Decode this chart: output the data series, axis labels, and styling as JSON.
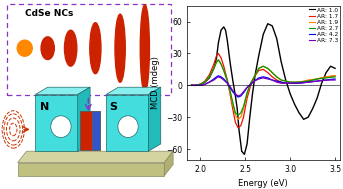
{
  "fig_width": 3.43,
  "fig_height": 1.89,
  "dpi": 100,
  "plot": {
    "xlim": [
      1.85,
      3.55
    ],
    "ylim": [
      -70,
      75
    ],
    "yticks": [
      -60,
      -30,
      0,
      30,
      60
    ],
    "xticks": [
      2.0,
      2.5,
      3.0,
      3.5
    ],
    "xlabel": "Energy (eV)",
    "ylabel": "MCD (mdeg)",
    "legend_labels": [
      "AR: 1.0",
      "AR: 1.7",
      "AR: 1.9",
      "AR: 2.7",
      "AR: 4.2",
      "AR: 7.3"
    ],
    "legend_colors": [
      "#000000",
      "#ee1100",
      "#ff8800",
      "#009900",
      "#0000ee",
      "#7700bb"
    ]
  },
  "curves": {
    "AR1.0": {
      "color": "#000000",
      "x": [
        1.9,
        1.95,
        2.0,
        2.05,
        2.1,
        2.15,
        2.18,
        2.2,
        2.23,
        2.26,
        2.28,
        2.3,
        2.33,
        2.36,
        2.39,
        2.41,
        2.43,
        2.46,
        2.49,
        2.52,
        2.55,
        2.58,
        2.61,
        2.65,
        2.7,
        2.75,
        2.8,
        2.85,
        2.9,
        2.95,
        3.0,
        3.05,
        3.1,
        3.15,
        3.2,
        3.25,
        3.3,
        3.35,
        3.4,
        3.45,
        3.5
      ],
      "y": [
        0,
        0,
        1,
        3,
        7,
        16,
        26,
        40,
        52,
        55,
        52,
        42,
        22,
        5,
        -10,
        -22,
        -42,
        -62,
        -65,
        -55,
        -30,
        -8,
        10,
        28,
        48,
        58,
        56,
        44,
        22,
        5,
        -8,
        -18,
        -26,
        -32,
        -30,
        -22,
        -12,
        2,
        12,
        18,
        16
      ]
    },
    "AR1.7": {
      "color": "#ee1100",
      "x": [
        1.9,
        1.95,
        2.0,
        2.05,
        2.1,
        2.15,
        2.18,
        2.2,
        2.23,
        2.26,
        2.3,
        2.33,
        2.36,
        2.39,
        2.42,
        2.45,
        2.48,
        2.52,
        2.56,
        2.6,
        2.65,
        2.7,
        2.75,
        2.8,
        2.85,
        2.9,
        2.95,
        3.0,
        3.1,
        3.2,
        3.3,
        3.4,
        3.5
      ],
      "y": [
        0,
        0,
        1,
        4,
        10,
        20,
        28,
        30,
        26,
        18,
        5,
        -8,
        -22,
        -35,
        -40,
        -38,
        -30,
        -12,
        0,
        8,
        14,
        15,
        12,
        8,
        5,
        3,
        2,
        2,
        3,
        4,
        6,
        8,
        9
      ]
    },
    "AR1.9": {
      "color": "#ff8800",
      "x": [
        1.9,
        1.95,
        2.0,
        2.05,
        2.1,
        2.15,
        2.18,
        2.2,
        2.23,
        2.26,
        2.3,
        2.33,
        2.36,
        2.39,
        2.42,
        2.45,
        2.48,
        2.52,
        2.56,
        2.6,
        2.65,
        2.7,
        2.75,
        2.8,
        2.85,
        2.9,
        2.95,
        3.0,
        3.1,
        3.2,
        3.3,
        3.4,
        3.5
      ],
      "y": [
        0,
        0,
        1,
        3,
        8,
        16,
        22,
        24,
        20,
        14,
        4,
        -6,
        -18,
        -28,
        -32,
        -30,
        -22,
        -8,
        2,
        8,
        16,
        18,
        16,
        12,
        8,
        5,
        4,
        3,
        3,
        5,
        6,
        8,
        9
      ]
    },
    "AR2.7": {
      "color": "#009900",
      "x": [
        1.9,
        1.95,
        2.0,
        2.05,
        2.1,
        2.15,
        2.18,
        2.2,
        2.23,
        2.26,
        2.3,
        2.33,
        2.36,
        2.39,
        2.42,
        2.45,
        2.48,
        2.52,
        2.56,
        2.6,
        2.65,
        2.7,
        2.75,
        2.8,
        2.85,
        2.9,
        2.95,
        3.0,
        3.1,
        3.2,
        3.3,
        3.4,
        3.5
      ],
      "y": [
        0,
        0,
        1,
        3,
        8,
        16,
        22,
        24,
        20,
        14,
        4,
        -5,
        -16,
        -26,
        -28,
        -26,
        -20,
        -7,
        2,
        8,
        16,
        18,
        16,
        12,
        8,
        5,
        4,
        3,
        3,
        4,
        6,
        7,
        8
      ]
    },
    "AR4.2": {
      "color": "#0000ee",
      "x": [
        1.9,
        1.95,
        2.0,
        2.05,
        2.1,
        2.15,
        2.18,
        2.2,
        2.23,
        2.26,
        2.3,
        2.33,
        2.36,
        2.39,
        2.42,
        2.45,
        2.48,
        2.52,
        2.56,
        2.6,
        2.65,
        2.7,
        2.75,
        2.8,
        2.85,
        2.9,
        2.95,
        3.0,
        3.1,
        3.2,
        3.3,
        3.4,
        3.5
      ],
      "y": [
        0,
        0,
        0,
        1,
        3,
        6,
        8,
        9,
        8,
        6,
        2,
        -2,
        -6,
        -9,
        -11,
        -10,
        -7,
        -2,
        1,
        4,
        7,
        8,
        7,
        5,
        4,
        3,
        2,
        2,
        2,
        3,
        4,
        5,
        6
      ]
    },
    "AR7.3": {
      "color": "#7700bb",
      "x": [
        1.9,
        1.95,
        2.0,
        2.05,
        2.1,
        2.15,
        2.18,
        2.2,
        2.23,
        2.26,
        2.3,
        2.33,
        2.36,
        2.39,
        2.42,
        2.45,
        2.48,
        2.52,
        2.56,
        2.6,
        2.65,
        2.7,
        2.75,
        2.8,
        2.85,
        2.9,
        2.95,
        3.0,
        3.1,
        3.2,
        3.3,
        3.4,
        3.5
      ],
      "y": [
        0,
        0,
        0,
        1,
        3,
        5,
        7,
        8,
        7,
        5,
        2,
        -1,
        -5,
        -8,
        -10,
        -9,
        -6,
        -2,
        1,
        4,
        6,
        7,
        6,
        5,
        3,
        2,
        2,
        2,
        2,
        3,
        4,
        5,
        5
      ]
    }
  },
  "ill": {
    "box_color": "#44dddd",
    "box_dark": "#22aaaa",
    "box_light": "#88eeee",
    "platform_top": "#d4d4a0",
    "platform_front": "#c0c080",
    "platform_side": "#b0b070",
    "sample_red": "#cc2200",
    "sample_blue": "#3355cc",
    "nc_orange": "#ff8800",
    "nc_red": "#cc2200",
    "arrow_color": "#cc3300",
    "dashed_color": "#8833cc",
    "label_n": "N",
    "label_s": "S",
    "title": "CdSe NCs"
  }
}
